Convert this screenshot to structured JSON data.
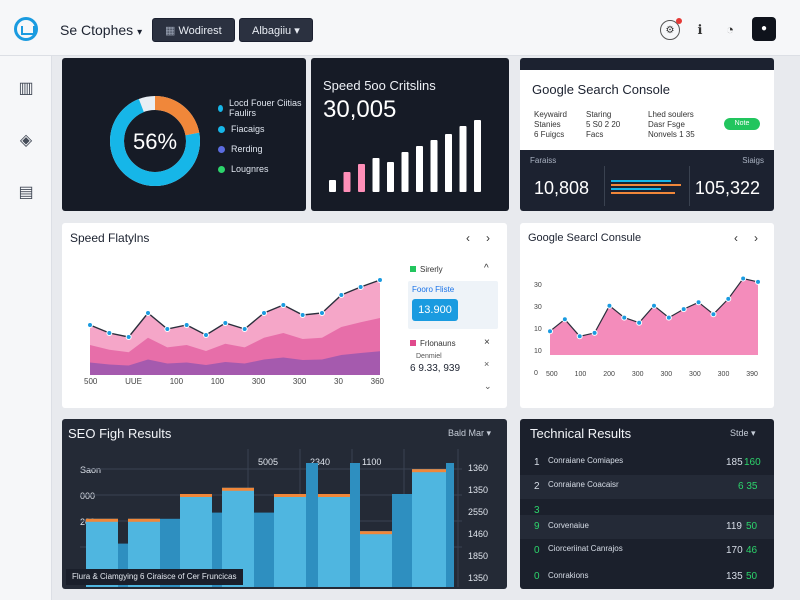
{
  "header": {
    "brand": "Se Ctophes",
    "btn1": "Wodirest",
    "btn2": "Albagiiu"
  },
  "donut": {
    "percent": "56%",
    "value_fraction": 0.56,
    "legend": [
      "Locd Fouer Ciitias Faulirs",
      "Fiacaigs",
      "Rerding",
      "Lougnres"
    ],
    "colors": [
      "#16b6e8",
      "#f0873a",
      "#e8eef4",
      "#5b6ce0"
    ]
  },
  "speed_card": {
    "title": "Speed 5oo Critslins",
    "value": "30,005",
    "bars": [
      12,
      20,
      28,
      34,
      30,
      40,
      46,
      52,
      58,
      66,
      72
    ],
    "bar_colors": [
      "#ffffff",
      "#ff8fb8",
      "#ff8fb8",
      "#ffffff",
      "#ffffff",
      "#ffffff",
      "#ffffff",
      "#ffffff",
      "#ffffff",
      "#ffffff",
      "#ffffff"
    ]
  },
  "gsc_top": {
    "title": "Google Search Console",
    "col1": [
      "Keywaird",
      "Stanies",
      "6 Fuigcs"
    ],
    "col2": [
      "Staring",
      "5 S0 2 20",
      "Facs"
    ],
    "col3": [
      "Lhed soulers",
      "Dasr Fsge",
      "Nonvels 1 35"
    ],
    "badge": "Note",
    "strip_left": "Faraiss",
    "strip_right": "Siaigs",
    "value_left": "10,808",
    "value_right": "105,322"
  },
  "speed_platforms": {
    "title": "Speed Flatylns",
    "x_ticks": [
      "500",
      "UUE",
      "100",
      "100",
      "300",
      "300",
      "30",
      "360"
    ],
    "series_top": [
      50,
      42,
      38,
      62,
      46,
      50,
      40,
      52,
      46,
      62,
      70,
      60,
      62,
      80,
      88,
      95
    ],
    "side_legend1": "Sirerly",
    "side_title": "Fooro Fliste",
    "side_value": "13.900",
    "side_legend2": "Frlonauns",
    "side_sub": "Denmiel",
    "side_value2": "6 9.33, 939"
  },
  "gsc_chart": {
    "title": "Google Searcl Consule",
    "y_ticks": [
      "30",
      "30",
      "10",
      "10",
      "0"
    ],
    "x_ticks": [
      "500",
      "100",
      "200",
      "300",
      "300",
      "300",
      "300",
      "390"
    ],
    "series": [
      28,
      42,
      22,
      26,
      58,
      44,
      38,
      58,
      44,
      54,
      62,
      48,
      66,
      90,
      86
    ]
  },
  "seo_results": {
    "title": "SEO Figh Results",
    "filter": "Bald Mar",
    "y_left": [
      "Saon",
      "000",
      "200"
    ],
    "col_heads": [
      "5005",
      "2340",
      "1100"
    ],
    "y_right": [
      "1360",
      "1350",
      "2550",
      "1460",
      "1850",
      "1350"
    ],
    "bars": [
      55,
      35,
      55,
      55,
      75,
      60,
      80,
      60,
      75,
      100,
      75,
      100,
      45,
      75,
      95,
      100
    ],
    "bar_caps": [
      true,
      false,
      true,
      false,
      true,
      false,
      true,
      false,
      true,
      false,
      true,
      false,
      true,
      false,
      true,
      false
    ],
    "footer": "Flura & Ciamgying 6 Ciraisce of Cer Fruncicas"
  },
  "technical": {
    "title": "Technical Results",
    "filter": "Stde",
    "rows": [
      {
        "idx": "1",
        "name": "Conraiane Comiapes",
        "value": "185",
        "delta": "160",
        "color": "#2cd46b"
      },
      {
        "idx": "2",
        "name": "Conraiane Coacaisr",
        "value": "",
        "delta": "6 35",
        "color": "#2cd46b"
      },
      {
        "idx": "3",
        "name": "",
        "value": "",
        "delta": "",
        "color": "#2cd46b"
      },
      {
        "idx": "9",
        "name": "Corvenaiue",
        "value": "119",
        "delta": "50",
        "color": "#2cd46b"
      },
      {
        "idx": "0",
        "name": "Ciorceriinat Canrajos",
        "value": "170",
        "delta": "46",
        "color": "#2cd46b"
      },
      {
        "idx": "0",
        "name": "Conrakions",
        "value": "135",
        "delta": "50",
        "color": "#2cd46b"
      }
    ]
  }
}
